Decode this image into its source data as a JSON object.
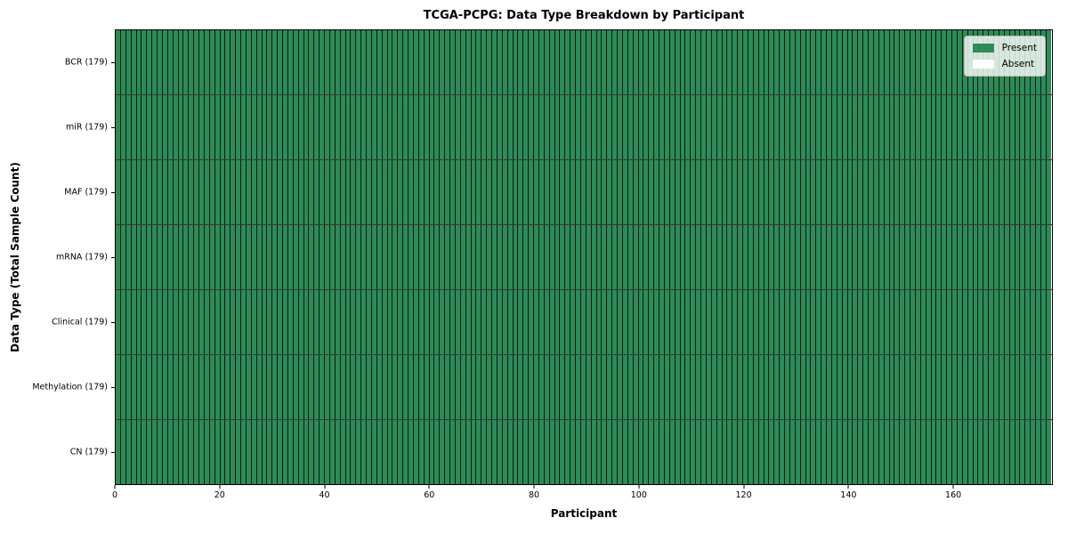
{
  "chart_data": {
    "type": "heatmap",
    "title": "TCGA-PCPG: Data Type Breakdown by Participant",
    "xlabel": "Participant",
    "ylabel": "Data Type (Total Sample Count)",
    "n_participants": 179,
    "xlim": [
      0,
      179
    ],
    "x_ticks": [
      0,
      20,
      40,
      60,
      80,
      100,
      120,
      140,
      160
    ],
    "rows": [
      {
        "name": "bcr",
        "label": "BCR (179)",
        "total_samples": 179,
        "present_count": 179,
        "absent_count": 0
      },
      {
        "name": "mir",
        "label": "miR (179)",
        "total_samples": 179,
        "present_count": 179,
        "absent_count": 0
      },
      {
        "name": "maf",
        "label": "MAF (179)",
        "total_samples": 179,
        "present_count": 179,
        "absent_count": 0
      },
      {
        "name": "mrna",
        "label": "mRNA (179)",
        "total_samples": 179,
        "present_count": 179,
        "absent_count": 0
      },
      {
        "name": "clinical",
        "label": "Clinical (179)",
        "total_samples": 179,
        "present_count": 179,
        "absent_count": 0
      },
      {
        "name": "methylation",
        "label": "Methylation (179)",
        "total_samples": 179,
        "present_count": 179,
        "absent_count": 0
      },
      {
        "name": "cn",
        "label": "CN (179)",
        "total_samples": 179,
        "present_count": 179,
        "absent_count": 0
      }
    ],
    "legend": {
      "position": "upper right",
      "items": [
        {
          "name": "present",
          "label": "Present",
          "color": "#2e8b57"
        },
        {
          "name": "absent",
          "label": "Absent",
          "color": "#ffffff"
        }
      ]
    },
    "colors": {
      "present": "#2e8b57",
      "absent": "#ffffff",
      "cell_edge": "rgba(0,0,0,0.78)"
    },
    "grid": false
  }
}
